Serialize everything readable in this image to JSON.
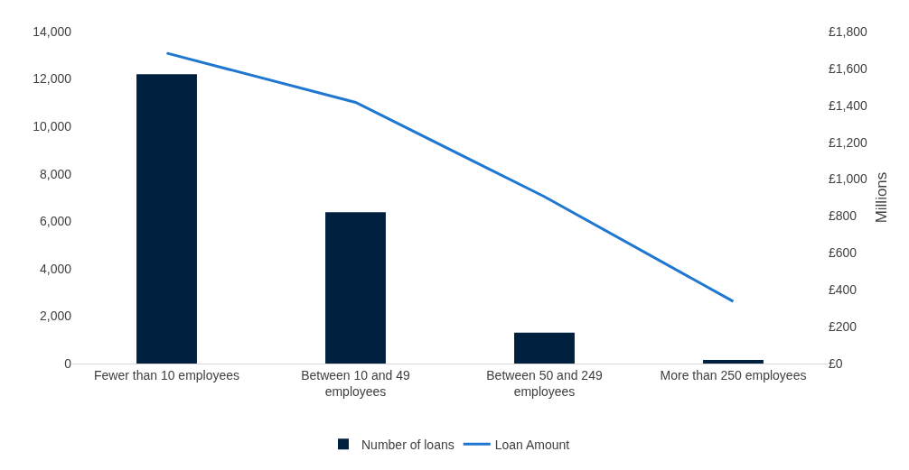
{
  "chart_data": {
    "type": "bar",
    "categories": [
      "Fewer than 10 employees",
      "Between 10 and 49 employees",
      "Between 50 and 249 employees",
      "More than 250 employees"
    ],
    "series": [
      {
        "name": "Number of loans",
        "color": "#00203f",
        "values": [
          12200,
          6380,
          1300,
          150
        ]
      },
      {
        "name": "Loan Amount",
        "type": "line",
        "axis": "y2",
        "color": "#1f77d0",
        "values": [
          1683,
          1416,
          905,
          337
        ]
      }
    ],
    "y2label": "Millions",
    "ylim": [
      0,
      14000
    ],
    "yticks": [
      {
        "value": 0,
        "label": "0"
      },
      {
        "value": 2000,
        "label": "2,000"
      },
      {
        "value": 4000,
        "label": "4,000"
      },
      {
        "value": 6000,
        "label": "6,000"
      },
      {
        "value": 8000,
        "label": "8,000"
      },
      {
        "value": 10000,
        "label": "10,000"
      },
      {
        "value": 12000,
        "label": "12,000"
      },
      {
        "value": 14000,
        "label": "14,000"
      }
    ],
    "y2lim": [
      0,
      1800
    ],
    "y2ticks": [
      {
        "value": 0,
        "label": "£0"
      },
      {
        "value": 200,
        "label": "£200"
      },
      {
        "value": 400,
        "label": "£400"
      },
      {
        "value": 600,
        "label": "£600"
      },
      {
        "value": 800,
        "label": "£800"
      },
      {
        "value": 1000,
        "label": "£1,000"
      },
      {
        "value": 1200,
        "label": "£1,200"
      },
      {
        "value": 1400,
        "label": "£1,400"
      },
      {
        "value": 1600,
        "label": "£1,600"
      },
      {
        "value": 1800,
        "label": "£1,800"
      }
    ],
    "grid": false,
    "legend": "bottom"
  }
}
